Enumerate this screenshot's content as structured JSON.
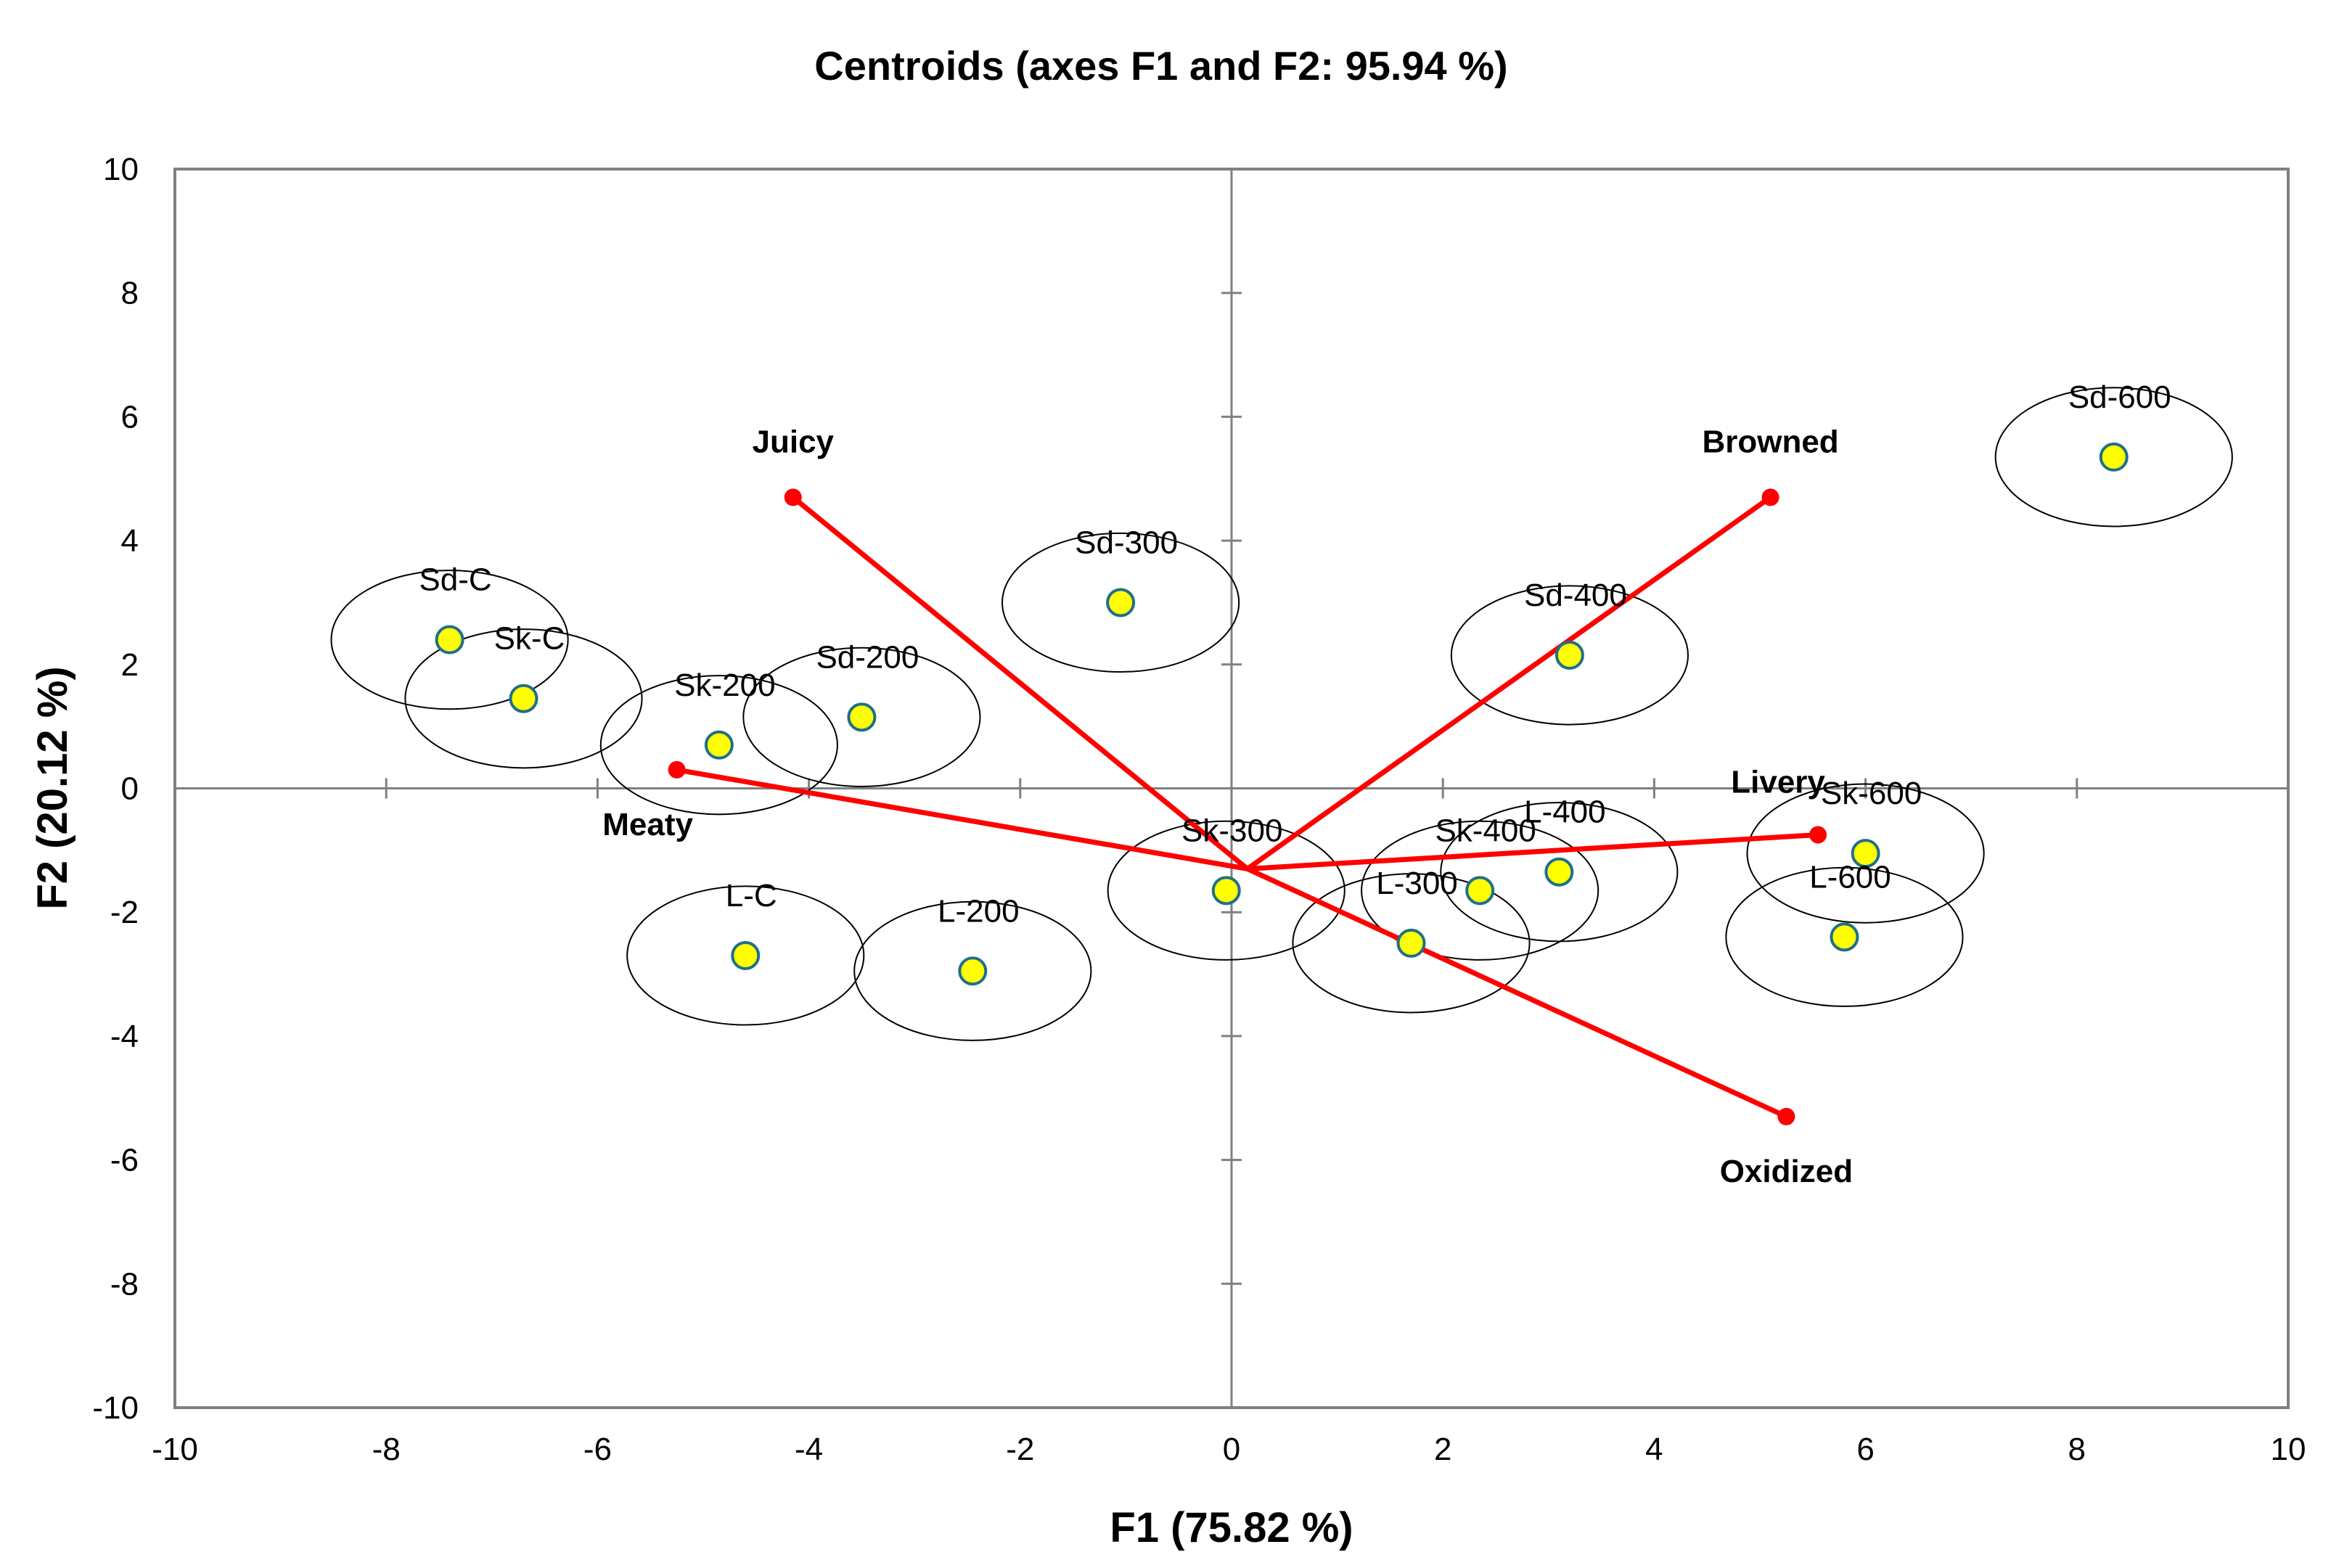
{
  "chart_data": {
    "type": "scatter",
    "title": "Centroids (axes F1 and F2: 95.94 %)",
    "xlabel": "F1 (75.82 %)",
    "ylabel": "F2 (20.12 %)",
    "xlim": [
      -10,
      10
    ],
    "ylim": [
      -10,
      10
    ],
    "xticks": [
      -10,
      -8,
      -6,
      -4,
      -2,
      0,
      2,
      4,
      6,
      8,
      10
    ],
    "yticks": [
      -10,
      -8,
      -6,
      -4,
      -2,
      0,
      2,
      4,
      6,
      8,
      10
    ],
    "grid": false,
    "point_color": "#ffff00",
    "point_edge_color": "#1f6f8b",
    "ellipse_color": "#000000",
    "vector_color": "#ff0000",
    "ellipse_radius_units": {
      "rx": 1.12,
      "ry": 1.12
    },
    "points": [
      {
        "label": "Sd-C",
        "x": -7.4,
        "y": 2.4
      },
      {
        "label": "Sk-C",
        "x": -6.7,
        "y": 1.45
      },
      {
        "label": "Sk-200",
        "x": -4.85,
        "y": 0.7
      },
      {
        "label": "Sd-200",
        "x": -3.5,
        "y": 1.15
      },
      {
        "label": "Sd-300",
        "x": -1.05,
        "y": 3.0
      },
      {
        "label": "L-C",
        "x": -4.6,
        "y": -2.7
      },
      {
        "label": "L-200",
        "x": -2.45,
        "y": -2.95
      },
      {
        "label": "Sk-300",
        "x": -0.05,
        "y": -1.65
      },
      {
        "label": "L-300",
        "x": 1.7,
        "y": -2.5
      },
      {
        "label": "Sk-400",
        "x": 2.35,
        "y": -1.65
      },
      {
        "label": "L-400",
        "x": 3.1,
        "y": -1.35
      },
      {
        "label": "Sd-400",
        "x": 3.2,
        "y": 2.15
      },
      {
        "label": "Sk-600",
        "x": 6.0,
        "y": -1.05
      },
      {
        "label": "L-600",
        "x": 5.8,
        "y": -2.4
      },
      {
        "label": "Sd-600",
        "x": 8.35,
        "y": 5.35
      }
    ],
    "vector_origin": {
      "x": 0.15,
      "y": -1.3
    },
    "vectors": [
      {
        "label": "Juicy",
        "x": -4.15,
        "y": 4.7
      },
      {
        "label": "Browned",
        "x": 5.1,
        "y": 4.7
      },
      {
        "label": "Meaty",
        "x": -5.25,
        "y": 0.3
      },
      {
        "label": "Livery",
        "x": 5.55,
        "y": -0.75
      },
      {
        "label": "Oxidized",
        "x": 5.25,
        "y": -5.3
      }
    ]
  }
}
